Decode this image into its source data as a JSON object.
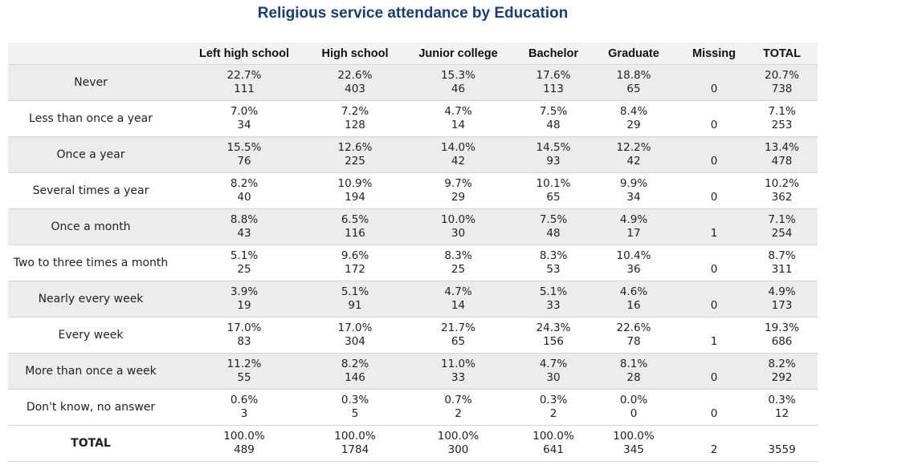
{
  "title": "Religious service attendance by Education",
  "columns": [
    "Left high school",
    "High school",
    "Junior college",
    "Bachelor",
    "Graduate",
    "Missing",
    "TOTAL"
  ],
  "rows": [
    {
      "label": "Never",
      "cells": [
        {
          "pct": "22.7%",
          "n": "111"
        },
        {
          "pct": "22.6%",
          "n": "403"
        },
        {
          "pct": "15.3%",
          "n": "46"
        },
        {
          "pct": "17.6%",
          "n": "113"
        },
        {
          "pct": "18.8%",
          "n": "65"
        }
      ],
      "missing": "0",
      "total": {
        "pct": "20.7%",
        "n": "738"
      }
    },
    {
      "label": "Less than once a year",
      "cells": [
        {
          "pct": "7.0%",
          "n": "34"
        },
        {
          "pct": "7.2%",
          "n": "128"
        },
        {
          "pct": "4.7%",
          "n": "14"
        },
        {
          "pct": "7.5%",
          "n": "48"
        },
        {
          "pct": "8.4%",
          "n": "29"
        }
      ],
      "missing": "0",
      "total": {
        "pct": "7.1%",
        "n": "253"
      }
    },
    {
      "label": "Once a year",
      "cells": [
        {
          "pct": "15.5%",
          "n": "76"
        },
        {
          "pct": "12.6%",
          "n": "225"
        },
        {
          "pct": "14.0%",
          "n": "42"
        },
        {
          "pct": "14.5%",
          "n": "93"
        },
        {
          "pct": "12.2%",
          "n": "42"
        }
      ],
      "missing": "0",
      "total": {
        "pct": "13.4%",
        "n": "478"
      }
    },
    {
      "label": "Several times a year",
      "cells": [
        {
          "pct": "8.2%",
          "n": "40"
        },
        {
          "pct": "10.9%",
          "n": "194"
        },
        {
          "pct": "9.7%",
          "n": "29"
        },
        {
          "pct": "10.1%",
          "n": "65"
        },
        {
          "pct": "9.9%",
          "n": "34"
        }
      ],
      "missing": "0",
      "total": {
        "pct": "10.2%",
        "n": "362"
      }
    },
    {
      "label": "Once a month",
      "cells": [
        {
          "pct": "8.8%",
          "n": "43"
        },
        {
          "pct": "6.5%",
          "n": "116"
        },
        {
          "pct": "10.0%",
          "n": "30"
        },
        {
          "pct": "7.5%",
          "n": "48"
        },
        {
          "pct": "4.9%",
          "n": "17"
        }
      ],
      "missing": "1",
      "total": {
        "pct": "7.1%",
        "n": "254"
      }
    },
    {
      "label": "Two to three times a month",
      "cells": [
        {
          "pct": "5.1%",
          "n": "25"
        },
        {
          "pct": "9.6%",
          "n": "172"
        },
        {
          "pct": "8.3%",
          "n": "25"
        },
        {
          "pct": "8.3%",
          "n": "53"
        },
        {
          "pct": "10.4%",
          "n": "36"
        }
      ],
      "missing": "0",
      "total": {
        "pct": "8.7%",
        "n": "311"
      }
    },
    {
      "label": "Nearly every week",
      "cells": [
        {
          "pct": "3.9%",
          "n": "19"
        },
        {
          "pct": "5.1%",
          "n": "91"
        },
        {
          "pct": "4.7%",
          "n": "14"
        },
        {
          "pct": "5.1%",
          "n": "33"
        },
        {
          "pct": "4.6%",
          "n": "16"
        }
      ],
      "missing": "0",
      "total": {
        "pct": "4.9%",
        "n": "173"
      }
    },
    {
      "label": "Every week",
      "cells": [
        {
          "pct": "17.0%",
          "n": "83"
        },
        {
          "pct": "17.0%",
          "n": "304"
        },
        {
          "pct": "21.7%",
          "n": "65"
        },
        {
          "pct": "24.3%",
          "n": "156"
        },
        {
          "pct": "22.6%",
          "n": "78"
        }
      ],
      "missing": "1",
      "total": {
        "pct": "19.3%",
        "n": "686"
      }
    },
    {
      "label": "More than once a week",
      "cells": [
        {
          "pct": "11.2%",
          "n": "55"
        },
        {
          "pct": "8.2%",
          "n": "146"
        },
        {
          "pct": "11.0%",
          "n": "33"
        },
        {
          "pct": "4.7%",
          "n": "30"
        },
        {
          "pct": "8.1%",
          "n": "28"
        }
      ],
      "missing": "0",
      "total": {
        "pct": "8.2%",
        "n": "292"
      }
    },
    {
      "label": "Don't know, no answer",
      "cells": [
        {
          "pct": "0.6%",
          "n": "3"
        },
        {
          "pct": "0.3%",
          "n": "5"
        },
        {
          "pct": "0.7%",
          "n": "2"
        },
        {
          "pct": "0.3%",
          "n": "2"
        },
        {
          "pct": "0.0%",
          "n": "0"
        }
      ],
      "missing": "0",
      "total": {
        "pct": "0.3%",
        "n": "12"
      }
    }
  ],
  "total_row": {
    "label": "TOTAL",
    "cells": [
      {
        "pct": "100.0%",
        "n": "489"
      },
      {
        "pct": "100.0%",
        "n": "1784"
      },
      {
        "pct": "100.0%",
        "n": "300"
      },
      {
        "pct": "100.0%",
        "n": "641"
      },
      {
        "pct": "100.0%",
        "n": "345"
      }
    ],
    "missing": "2",
    "total": {
      "n": "3559"
    }
  }
}
